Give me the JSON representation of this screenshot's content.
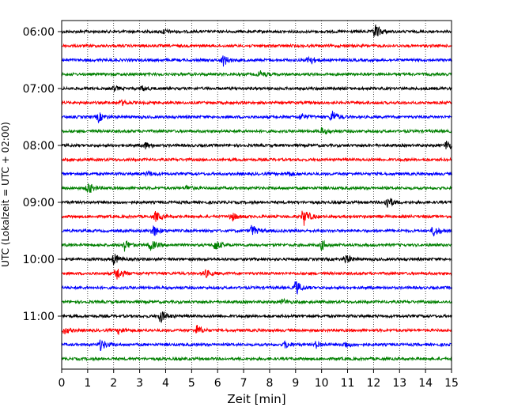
{
  "chart_data": {
    "type": "line",
    "title": "",
    "xlabel": "Zeit  [min]",
    "ylabel": "UTC (Lokalzeit = UTC + 02:00)",
    "xlim": [
      0,
      15
    ],
    "x_ticks": [
      "0",
      "1",
      "2",
      "3",
      "4",
      "5",
      "6",
      "7",
      "8",
      "9",
      "10",
      "11",
      "12",
      "13",
      "14",
      "15"
    ],
    "y_ticks": [
      "06:00",
      "07:00",
      "08:00",
      "09:00",
      "10:00",
      "11:00"
    ],
    "trace_interval_min": 15,
    "trace_colors": [
      "#000000",
      "#ff0000",
      "#0000ff",
      "#008000"
    ],
    "grid": "vertical dotted",
    "traces": [
      {
        "start": "06:00",
        "events": [
          [
            12.05,
            10
          ],
          [
            3.9,
            3
          ]
        ]
      },
      {
        "start": "06:15",
        "events": []
      },
      {
        "start": "06:30",
        "events": [
          [
            6.2,
            7
          ],
          [
            9.5,
            6
          ]
        ]
      },
      {
        "start": "06:45",
        "events": [
          [
            7.6,
            4
          ]
        ]
      },
      {
        "start": "07:00",
        "events": [
          [
            2.0,
            3
          ],
          [
            3.1,
            3
          ]
        ]
      },
      {
        "start": "07:15",
        "events": [
          [
            2.3,
            3
          ]
        ]
      },
      {
        "start": "07:30",
        "events": [
          [
            1.4,
            6
          ],
          [
            10.4,
            8
          ],
          [
            9.2,
            4
          ]
        ]
      },
      {
        "start": "07:45",
        "events": [
          [
            10.0,
            4
          ]
        ]
      },
      {
        "start": "08:00",
        "events": [
          [
            3.2,
            4
          ],
          [
            14.8,
            6
          ]
        ]
      },
      {
        "start": "08:15",
        "events": []
      },
      {
        "start": "08:30",
        "events": [
          [
            3.3,
            3
          ],
          [
            8.7,
            3
          ]
        ]
      },
      {
        "start": "08:45",
        "events": [
          [
            1.0,
            8
          ],
          [
            4.8,
            3
          ]
        ]
      },
      {
        "start": "09:00",
        "events": [
          [
            12.5,
            9
          ]
        ]
      },
      {
        "start": "09:15",
        "events": [
          [
            3.6,
            6
          ],
          [
            6.5,
            6
          ],
          [
            9.3,
            11
          ]
        ]
      },
      {
        "start": "09:30",
        "events": [
          [
            3.5,
            8
          ],
          [
            7.3,
            7
          ],
          [
            14.3,
            7
          ]
        ]
      },
      {
        "start": "09:45",
        "events": [
          [
            2.4,
            7
          ],
          [
            3.4,
            7
          ],
          [
            5.9,
            7
          ],
          [
            10.0,
            6
          ]
        ]
      },
      {
        "start": "10:00",
        "events": [
          [
            2.0,
            7
          ],
          [
            10.9,
            6
          ]
        ]
      },
      {
        "start": "10:15",
        "events": [
          [
            2.1,
            9
          ],
          [
            5.5,
            5
          ]
        ]
      },
      {
        "start": "10:30",
        "events": [
          [
            9.0,
            9
          ]
        ]
      },
      {
        "start": "10:45",
        "events": [
          [
            8.5,
            3
          ]
        ]
      },
      {
        "start": "11:00",
        "events": [
          [
            3.8,
            8
          ]
        ]
      },
      {
        "start": "11:15",
        "events": [
          [
            2.2,
            4
          ],
          [
            5.2,
            6
          ],
          [
            0.1,
            4
          ]
        ]
      },
      {
        "start": "11:30",
        "events": [
          [
            1.5,
            7
          ],
          [
            8.6,
            4
          ],
          [
            9.8,
            4
          ],
          [
            10.9,
            4
          ]
        ]
      },
      {
        "start": "11:45",
        "events": []
      }
    ]
  }
}
